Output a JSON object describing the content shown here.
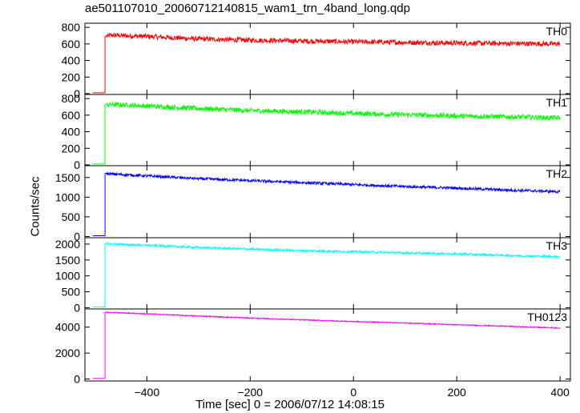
{
  "chart_data": {
    "type": "line",
    "title": "ae501107010_20060712140815_wam1_trn_4band_long.qdp",
    "xlabel": "Time [sec] 0 = 2006/07/12 14:08:15",
    "ylabel": "Counts/sec",
    "xlim": [
      -520,
      420
    ],
    "x_ticks": [
      -400,
      -200,
      0,
      200,
      400
    ],
    "x_tick_labels": [
      "−400",
      "−200",
      "0",
      "200",
      "400"
    ],
    "grid": false,
    "panels": [
      {
        "name": "TH0",
        "color": "#ff0000",
        "ylim": [
          -10,
          850
        ],
        "y_ticks": [
          0,
          200,
          400,
          600,
          800
        ],
        "y_tick_labels": [
          "0",
          "200",
          "400",
          "600",
          "800"
        ],
        "noise": 30,
        "points": [
          [
            -505,
            10
          ],
          [
            -481,
            10
          ],
          [
            -481,
            300
          ],
          [
            -478,
            690
          ],
          [
            -470,
            705
          ],
          [
            -400,
            690
          ],
          [
            -300,
            660
          ],
          [
            -200,
            645
          ],
          [
            -100,
            635
          ],
          [
            0,
            625
          ],
          [
            100,
            618
          ],
          [
            200,
            610
          ],
          [
            300,
            605
          ],
          [
            400,
            600
          ]
        ]
      },
      {
        "name": "TH1",
        "color": "#00ff00",
        "ylim": [
          -10,
          850
        ],
        "y_ticks": [
          0,
          200,
          400,
          600,
          800
        ],
        "y_tick_labels": [
          "0",
          "200",
          "400",
          "600",
          "800"
        ],
        "noise": 30,
        "points": [
          [
            -505,
            10
          ],
          [
            -481,
            10
          ],
          [
            -481,
            300
          ],
          [
            -478,
            720
          ],
          [
            -470,
            730
          ],
          [
            -400,
            710
          ],
          [
            -300,
            680
          ],
          [
            -200,
            655
          ],
          [
            -100,
            640
          ],
          [
            0,
            620
          ],
          [
            100,
            605
          ],
          [
            200,
            590
          ],
          [
            300,
            580
          ],
          [
            400,
            565
          ]
        ]
      },
      {
        "name": "TH2",
        "color": "#0000ff",
        "ylim": [
          -30,
          1800
        ],
        "y_ticks": [
          0,
          500,
          1000,
          1500
        ],
        "y_tick_labels": [
          "0",
          "500",
          "1000",
          "1500"
        ],
        "noise": 35,
        "points": [
          [
            -505,
            20
          ],
          [
            -481,
            20
          ],
          [
            -481,
            800
          ],
          [
            -478,
            1600
          ],
          [
            -470,
            1590
          ],
          [
            -400,
            1540
          ],
          [
            -300,
            1470
          ],
          [
            -200,
            1420
          ],
          [
            -100,
            1370
          ],
          [
            0,
            1320
          ],
          [
            100,
            1270
          ],
          [
            200,
            1230
          ],
          [
            300,
            1180
          ],
          [
            400,
            1140
          ]
        ]
      },
      {
        "name": "TH3",
        "color": "#00ffff",
        "ylim": [
          -40,
          2200
        ],
        "y_ticks": [
          0,
          500,
          1000,
          1500,
          2000
        ],
        "y_tick_labels": [
          "0",
          "500",
          "1000",
          "1500",
          "2000"
        ],
        "noise": 35,
        "points": [
          [
            -505,
            20
          ],
          [
            -481,
            20
          ],
          [
            -481,
            1000
          ],
          [
            -478,
            2010
          ],
          [
            -470,
            2000
          ],
          [
            -400,
            1960
          ],
          [
            -300,
            1890
          ],
          [
            -200,
            1840
          ],
          [
            -100,
            1790
          ],
          [
            0,
            1760
          ],
          [
            100,
            1720
          ],
          [
            200,
            1690
          ],
          [
            300,
            1640
          ],
          [
            400,
            1600
          ]
        ]
      },
      {
        "name": "TH0123",
        "color": "#ff00ff",
        "ylim": [
          -150,
          5400
        ],
        "y_ticks": [
          0,
          2000,
          4000
        ],
        "y_tick_labels": [
          "0",
          "2000",
          "4000"
        ],
        "noise": 40,
        "points": [
          [
            -505,
            50
          ],
          [
            -481,
            50
          ],
          [
            -481,
            2500
          ],
          [
            -478,
            5150
          ],
          [
            -470,
            5130
          ],
          [
            -400,
            5020
          ],
          [
            -300,
            4850
          ],
          [
            -200,
            4700
          ],
          [
            -100,
            4560
          ],
          [
            0,
            4430
          ],
          [
            100,
            4320
          ],
          [
            200,
            4180
          ],
          [
            300,
            4060
          ],
          [
            400,
            3930
          ]
        ]
      }
    ]
  }
}
